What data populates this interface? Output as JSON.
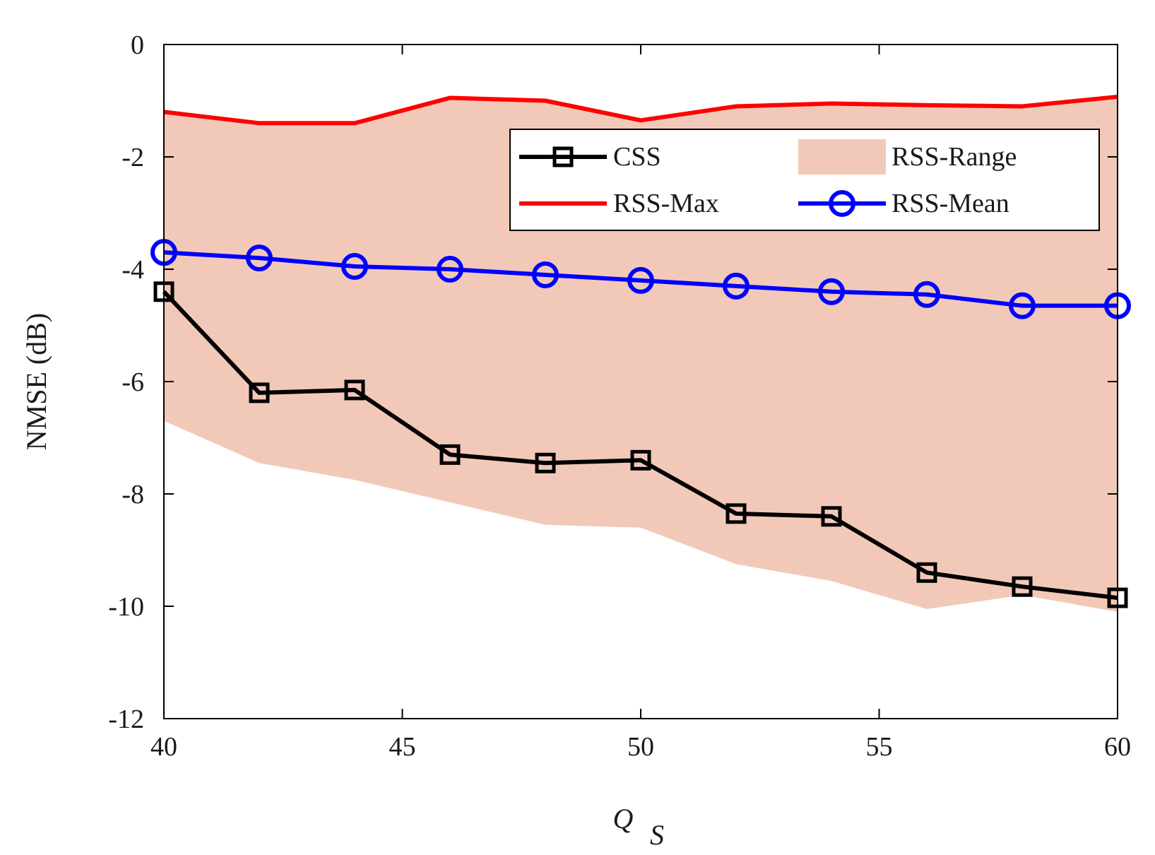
{
  "chart_data": {
    "type": "line",
    "title": "",
    "xlabel": "Q",
    "xlabel_subscript": "S",
    "ylabel": "NMSE (dB)",
    "xlim": [
      40,
      60
    ],
    "ylim": [
      -12,
      0
    ],
    "xticks": [
      40,
      45,
      50,
      55,
      60
    ],
    "yticks": [
      0,
      -2,
      -4,
      -6,
      -8,
      -10,
      -12
    ],
    "grid": false,
    "legend_position": "top-right",
    "x": [
      40,
      42,
      44,
      46,
      48,
      50,
      52,
      54,
      56,
      58,
      60
    ],
    "series": [
      {
        "name": "CSS",
        "kind": "line",
        "marker": "square",
        "color": "#000000",
        "values": [
          -4.4,
          -6.2,
          -6.15,
          -7.3,
          -7.45,
          -7.4,
          -8.35,
          -8.4,
          -9.4,
          -9.65,
          -9.85
        ]
      },
      {
        "name": "RSS-Range",
        "kind": "band",
        "color": "#f2c9b8",
        "upper": [
          -1.2,
          -1.4,
          -1.4,
          -0.95,
          -1.0,
          -1.35,
          -1.1,
          -1.05,
          -1.08,
          -1.1,
          -0.93
        ],
        "lower": [
          -6.7,
          -7.45,
          -7.75,
          -8.15,
          -8.55,
          -8.6,
          -9.25,
          -9.55,
          -10.05,
          -9.8,
          -10.1
        ]
      },
      {
        "name": "RSS-Max",
        "kind": "line",
        "marker": "none",
        "color": "#ff0000",
        "values": [
          -1.2,
          -1.4,
          -1.4,
          -0.95,
          -1.0,
          -1.35,
          -1.1,
          -1.05,
          -1.08,
          -1.1,
          -0.93
        ]
      },
      {
        "name": "RSS-Mean",
        "kind": "line",
        "marker": "circle",
        "color": "#0000ff",
        "values": [
          -3.7,
          -3.8,
          -3.95,
          -4.0,
          -4.1,
          -4.2,
          -4.3,
          -4.4,
          -4.45,
          -4.65,
          -4.65
        ]
      }
    ]
  }
}
